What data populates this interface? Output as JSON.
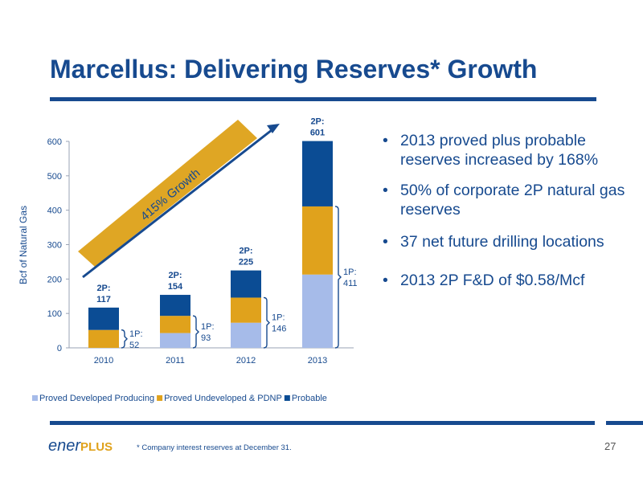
{
  "slide": {
    "title": "Marcellus: Delivering Reserves* Growth",
    "bullets": [
      "2013 proved plus probable reserves increased by 168%",
      "50% of corporate 2P natural gas reserves",
      "37 net future drilling locations",
      "2013 2P F&D of $0.58/Mcf"
    ],
    "logo": {
      "text": "ener",
      "plus": "PLUS"
    },
    "footnote": "* Company interest reserves at December 31.",
    "page_number": "27"
  },
  "colors": {
    "title": "#174a8f",
    "proved_developed_producing": "#a6bbe9",
    "proved_undeveloped_pdnp": "#e0a21c",
    "probable": "#0b4c94",
    "growth_arrow": "#dfa624"
  },
  "chart_data": {
    "type": "bar",
    "stacked": true,
    "categories": [
      "2010",
      "2011",
      "2012",
      "2013"
    ],
    "series": [
      {
        "name": "Proved Developed Producing",
        "values": [
          0,
          43,
          73,
          213
        ]
      },
      {
        "name": "Proved Undeveloped & PDNP",
        "values": [
          52,
          50,
          73,
          198
        ]
      },
      {
        "name": "Probable",
        "values": [
          65,
          61,
          79,
          190
        ]
      }
    ],
    "totals_2p": [
      117,
      154,
      225,
      601
    ],
    "totals_1p": [
      52,
      93,
      146,
      411
    ],
    "labels_2p": [
      "2P:",
      "2P:",
      "2P:",
      "2P:"
    ],
    "labels_1p": [
      "1P:",
      "1P:",
      "1P:",
      "1P:"
    ],
    "ylabel": "Bcf of Natural Gas",
    "ylim": [
      0,
      600
    ],
    "yticks": [
      0,
      100,
      200,
      300,
      400,
      500,
      600
    ],
    "annotation": "415% Growth",
    "legend_position": "bottom",
    "grid": false
  }
}
